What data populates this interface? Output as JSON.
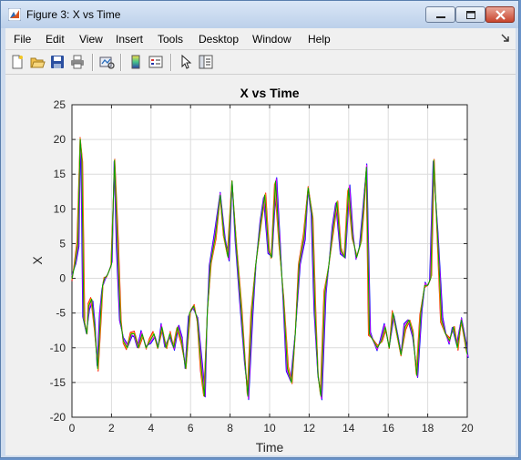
{
  "window": {
    "title": "Figure 3: X vs Time"
  },
  "menu": {
    "items": [
      "File",
      "Edit",
      "View",
      "Insert",
      "Tools",
      "Desktop",
      "Window",
      "Help"
    ]
  },
  "toolbar": {
    "icons": [
      "new-figure-icon",
      "open-file-icon",
      "save-icon",
      "print-icon",
      "link-plot-icon",
      "colorbar-icon",
      "legend-icon",
      "edit-plot-arrow-icon",
      "property-editor-icon"
    ]
  },
  "colors": {
    "series": [
      "#0000ff",
      "#ff0000",
      "#ff00ff",
      "#e6b800",
      "#00a000"
    ]
  },
  "chart_data": {
    "type": "line",
    "title": "X vs Time",
    "xlabel": "Time",
    "ylabel": "X",
    "xlim": [
      0,
      20
    ],
    "ylim": [
      -20,
      25
    ],
    "xticks": [
      0,
      2,
      4,
      6,
      8,
      10,
      12,
      14,
      16,
      18,
      20
    ],
    "yticks": [
      -20,
      -15,
      -10,
      -5,
      0,
      5,
      10,
      15,
      20,
      25
    ],
    "grid": true,
    "series_count": 5,
    "x": [
      0,
      0.15,
      0.3,
      0.42,
      0.5,
      0.6,
      0.75,
      0.85,
      1.0,
      1.15,
      1.3,
      1.45,
      1.55,
      1.65,
      1.8,
      2.0,
      2.15,
      2.3,
      2.45,
      2.6,
      2.8,
      3.0,
      3.15,
      3.35,
      3.55,
      3.75,
      3.95,
      4.15,
      4.35,
      4.55,
      4.75,
      4.95,
      5.15,
      5.35,
      5.55,
      5.75,
      5.95,
      6.15,
      6.35,
      6.55,
      6.7,
      6.85,
      7.0,
      7.25,
      7.5,
      7.7,
      7.9,
      8.1,
      8.3,
      8.55,
      8.75,
      8.9,
      9.1,
      9.3,
      9.55,
      9.75,
      9.95,
      10.1,
      10.3,
      10.5,
      10.7,
      10.9,
      11.1,
      11.3,
      11.5,
      11.75,
      11.95,
      12.15,
      12.3,
      12.45,
      12.6,
      12.8,
      13.0,
      13.2,
      13.4,
      13.6,
      13.8,
      14.0,
      14.2,
      14.4,
      14.6,
      14.75,
      14.9,
      15.05,
      15.25,
      15.45,
      15.65,
      15.85,
      16.05,
      16.25,
      16.45,
      16.65,
      16.85,
      17.05,
      17.25,
      17.45,
      17.65,
      17.85,
      18.0,
      18.15,
      18.3,
      18.5,
      18.7,
      18.9,
      19.1,
      19.3,
      19.5,
      19.7,
      19.9,
      20.0
    ],
    "y": [
      0,
      2,
      5,
      20,
      17,
      -6,
      -8,
      -4,
      -3,
      -7,
      -13,
      -5,
      -1,
      0,
      0.5,
      2,
      17,
      5,
      -6,
      -9,
      -10,
      -8,
      -8,
      -10,
      -8,
      -10,
      -9,
      -8,
      -10,
      -7,
      -10,
      -8,
      -10,
      -7,
      -9,
      -13,
      -5,
      -4,
      -6,
      -13,
      -17,
      -5,
      2,
      6,
      12,
      6,
      3,
      14,
      5,
      -4,
      -12,
      -17,
      -5,
      2,
      8,
      12,
      4,
      3,
      14,
      5,
      -3,
      -13,
      -15,
      -8,
      2,
      6,
      13,
      9,
      -5,
      -14,
      -17,
      -2,
      2,
      7,
      11,
      4,
      3,
      13,
      6,
      3,
      5,
      10,
      16,
      -8,
      -9,
      -10,
      -9,
      -7,
      -10,
      -5,
      -8,
      -11,
      -7,
      -6,
      -8,
      -14,
      -5,
      -1,
      -1,
      0,
      17,
      6,
      -6,
      -8,
      -9,
      -7,
      -10,
      -6,
      -9,
      -11
    ]
  }
}
